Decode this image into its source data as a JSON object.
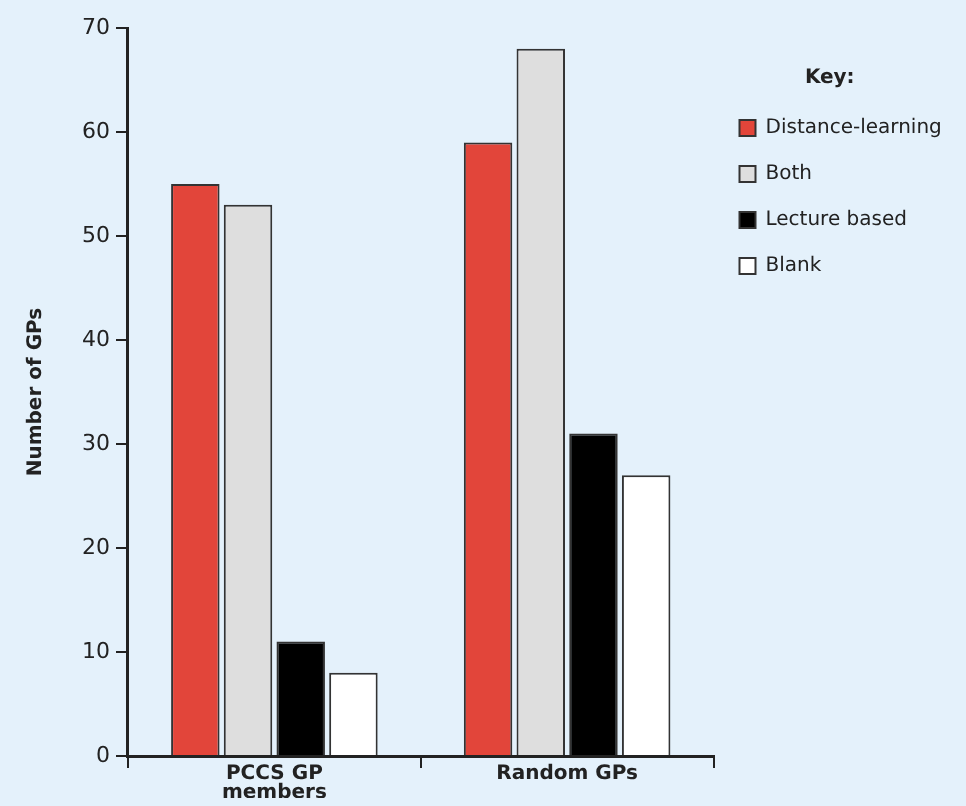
{
  "chart_data": {
    "type": "bar",
    "ylabel": "Number of GPs",
    "legend_title": "Key:",
    "legend": "top right",
    "grid": false,
    "categories": [
      "PCCS GP members",
      "Random GPs"
    ],
    "series": [
      {
        "name": "Distance-learning",
        "color": "#e2453a",
        "values": [
          55,
          59
        ]
      },
      {
        "name": "Both",
        "color": "#dedede",
        "values": [
          53,
          68
        ]
      },
      {
        "name": "Lecture based",
        "color": "#000000",
        "values": [
          11,
          31
        ]
      },
      {
        "name": "Blank",
        "color": "#ffffff",
        "values": [
          8,
          27
        ]
      }
    ],
    "ylim": [
      0,
      70
    ],
    "yticks": [
      0,
      10,
      20,
      30,
      40,
      50,
      60,
      70
    ]
  }
}
